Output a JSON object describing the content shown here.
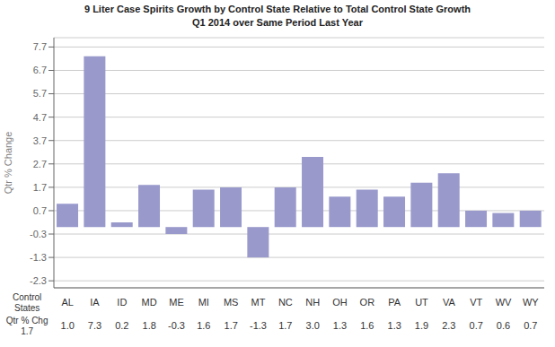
{
  "chart_data": {
    "type": "bar",
    "title": "9 Liter Case Spirits Growth by Control State Relative to Total Control State Growth",
    "subtitle": "Q1 2014 over Same Period Last Year",
    "ylabel": "Qtr % Change",
    "categories": [
      "AL",
      "IA",
      "ID",
      "MD",
      "ME",
      "MI",
      "MS",
      "MT",
      "NC",
      "NH",
      "OH",
      "OR",
      "PA",
      "UT",
      "VA",
      "VT",
      "WV",
      "WY"
    ],
    "values": [
      1.0,
      7.3,
      0.2,
      1.8,
      -0.3,
      1.6,
      1.7,
      -1.3,
      1.7,
      3.0,
      1.3,
      1.6,
      1.3,
      1.9,
      2.3,
      0.7,
      0.6,
      0.7
    ],
    "value_labels": [
      "1.0",
      "7.3",
      "0.2",
      "1.8",
      "-0.3",
      "1.6",
      "1.7",
      "-1.3",
      "1.7",
      "3.0",
      "1.3",
      "1.6",
      "1.3",
      "1.9",
      "2.3",
      "0.7",
      "0.6",
      "0.7"
    ],
    "data_labels": true,
    "color": "#9999cc",
    "ylim": [
      -2.6,
      8.1
    ],
    "yticks": [
      7.7,
      6.7,
      5.7,
      4.7,
      3.7,
      2.7,
      1.7,
      0.7,
      -0.3,
      -1.3,
      -2.3
    ],
    "grid": true,
    "row_labels": [
      "Control\nStates",
      "Qtr % Chg"
    ],
    "avg_value": 1.7
  }
}
